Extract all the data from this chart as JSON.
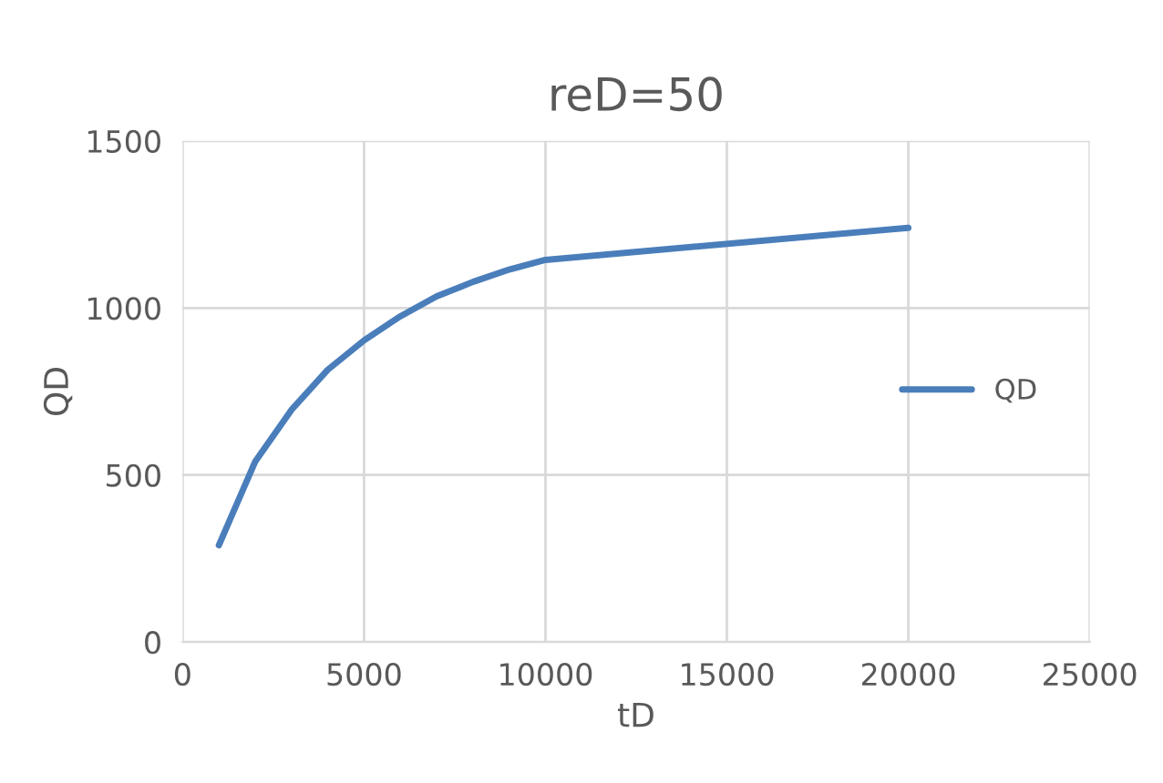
{
  "chart_data": {
    "type": "line",
    "title": "reD=50",
    "xlabel": "tD",
    "ylabel": "QD",
    "x": [
      1000,
      2000,
      3000,
      4000,
      5000,
      6000,
      7000,
      8000,
      9000,
      10000,
      20000
    ],
    "series": [
      {
        "name": "QD",
        "color": "#4a7ebb",
        "values": [
          290,
          540,
          695,
          815,
          903,
          975,
          1035,
          1078,
          1115,
          1144,
          1240
        ]
      }
    ],
    "xlim": [
      0,
      25000
    ],
    "xticks": [
      0,
      5000,
      10000,
      15000,
      20000,
      25000
    ],
    "ylim": [
      0,
      1500
    ],
    "yticks": [
      0,
      500,
      1000,
      1500
    ],
    "grid": true,
    "legend": "right",
    "marker": "none",
    "line_style": "solid"
  }
}
